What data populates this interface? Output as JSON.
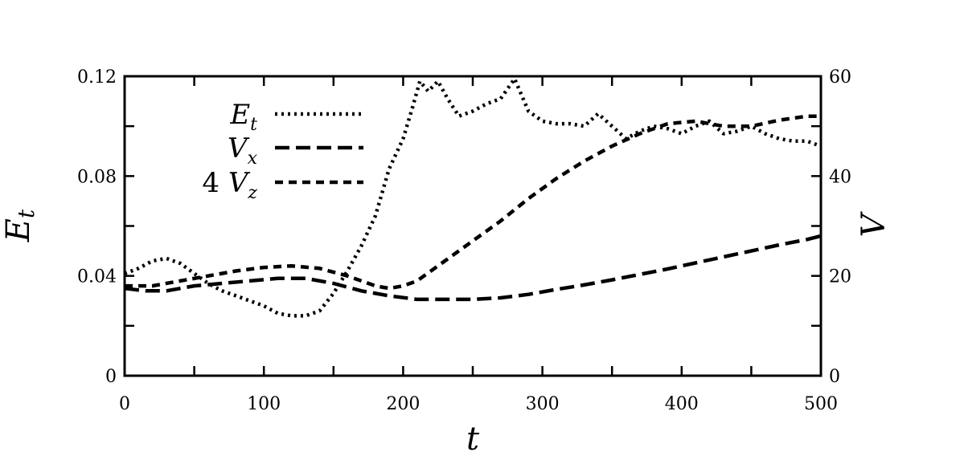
{
  "chart_data": {
    "type": "line",
    "xlabel": "t",
    "ylabel_left": "E_t",
    "ylabel_right": "V",
    "xlim": [
      0,
      500
    ],
    "ylim_left": [
      0,
      0.12
    ],
    "ylim_right": [
      0,
      60
    ],
    "x_ticks": [
      "0",
      "100",
      "200",
      "300",
      "400",
      "500"
    ],
    "y_left_ticks": [
      "0",
      "0.04",
      "0.08",
      "0.12"
    ],
    "y_right_ticks": [
      "0",
      "20",
      "40",
      "60"
    ],
    "grid": false,
    "legend_position": "top-left",
    "series": [
      {
        "name": "E_t",
        "legend_prefix": "",
        "legend_main": "E",
        "legend_sub": "t",
        "axis": "left",
        "style": "dotted",
        "points": [
          [
            0,
            0.041
          ],
          [
            10,
            0.043
          ],
          [
            20,
            0.046
          ],
          [
            30,
            0.047
          ],
          [
            40,
            0.045
          ],
          [
            50,
            0.041
          ],
          [
            60,
            0.037
          ],
          [
            70,
            0.034
          ],
          [
            80,
            0.032
          ],
          [
            90,
            0.03
          ],
          [
            100,
            0.028
          ],
          [
            110,
            0.025
          ],
          [
            120,
            0.024
          ],
          [
            130,
            0.024
          ],
          [
            140,
            0.026
          ],
          [
            150,
            0.033
          ],
          [
            160,
            0.042
          ],
          [
            170,
            0.052
          ],
          [
            180,
            0.064
          ],
          [
            190,
            0.083
          ],
          [
            200,
            0.095
          ],
          [
            207,
            0.108
          ],
          [
            212,
            0.118
          ],
          [
            218,
            0.114
          ],
          [
            225,
            0.118
          ],
          [
            232,
            0.111
          ],
          [
            240,
            0.104
          ],
          [
            250,
            0.106
          ],
          [
            260,
            0.109
          ],
          [
            270,
            0.111
          ],
          [
            280,
            0.119
          ],
          [
            290,
            0.106
          ],
          [
            300,
            0.102
          ],
          [
            310,
            0.101
          ],
          [
            320,
            0.101
          ],
          [
            330,
            0.1
          ],
          [
            340,
            0.105
          ],
          [
            350,
            0.1
          ],
          [
            360,
            0.095
          ],
          [
            370,
            0.098
          ],
          [
            380,
            0.1
          ],
          [
            390,
            0.099
          ],
          [
            400,
            0.097
          ],
          [
            410,
            0.1
          ],
          [
            420,
            0.102
          ],
          [
            430,
            0.097
          ],
          [
            440,
            0.098
          ],
          [
            450,
            0.1
          ],
          [
            460,
            0.097
          ],
          [
            470,
            0.095
          ],
          [
            480,
            0.094
          ],
          [
            490,
            0.094
          ],
          [
            500,
            0.092
          ]
        ]
      },
      {
        "name": "V_x",
        "legend_prefix": "",
        "legend_main": "V",
        "legend_sub": "x",
        "axis": "right",
        "style": "dashed",
        "points": [
          [
            0,
            17.5
          ],
          [
            15,
            17
          ],
          [
            30,
            17
          ],
          [
            50,
            18
          ],
          [
            70,
            18.5
          ],
          [
            90,
            19
          ],
          [
            110,
            19.5
          ],
          [
            130,
            19.5
          ],
          [
            150,
            18.5
          ],
          [
            170,
            17
          ],
          [
            190,
            16
          ],
          [
            210,
            15.3
          ],
          [
            230,
            15.3
          ],
          [
            250,
            15.3
          ],
          [
            270,
            15.6
          ],
          [
            290,
            16.3
          ],
          [
            310,
            17.3
          ],
          [
            330,
            18.2
          ],
          [
            350,
            19.2
          ],
          [
            370,
            20.3
          ],
          [
            390,
            21.4
          ],
          [
            410,
            22.6
          ],
          [
            430,
            23.8
          ],
          [
            450,
            25
          ],
          [
            470,
            26.2
          ],
          [
            490,
            27.3
          ],
          [
            500,
            28
          ]
        ]
      },
      {
        "name": "4 V_z",
        "legend_prefix": "4 ",
        "legend_main": "V",
        "legend_sub": "z",
        "axis": "right",
        "style": "dashed-short",
        "points": [
          [
            0,
            18
          ],
          [
            20,
            18
          ],
          [
            40,
            19
          ],
          [
            60,
            20
          ],
          [
            80,
            21
          ],
          [
            100,
            21.7
          ],
          [
            120,
            22
          ],
          [
            140,
            21.5
          ],
          [
            160,
            20
          ],
          [
            180,
            18
          ],
          [
            190,
            17.5
          ],
          [
            200,
            18
          ],
          [
            210,
            19
          ],
          [
            230,
            23
          ],
          [
            250,
            27
          ],
          [
            270,
            31
          ],
          [
            290,
            35.5
          ],
          [
            310,
            39.5
          ],
          [
            330,
            43
          ],
          [
            350,
            46
          ],
          [
            370,
            48.5
          ],
          [
            390,
            50.5
          ],
          [
            410,
            51
          ],
          [
            430,
            50
          ],
          [
            450,
            50
          ],
          [
            470,
            51.2
          ],
          [
            490,
            52
          ],
          [
            500,
            52
          ]
        ]
      }
    ]
  }
}
